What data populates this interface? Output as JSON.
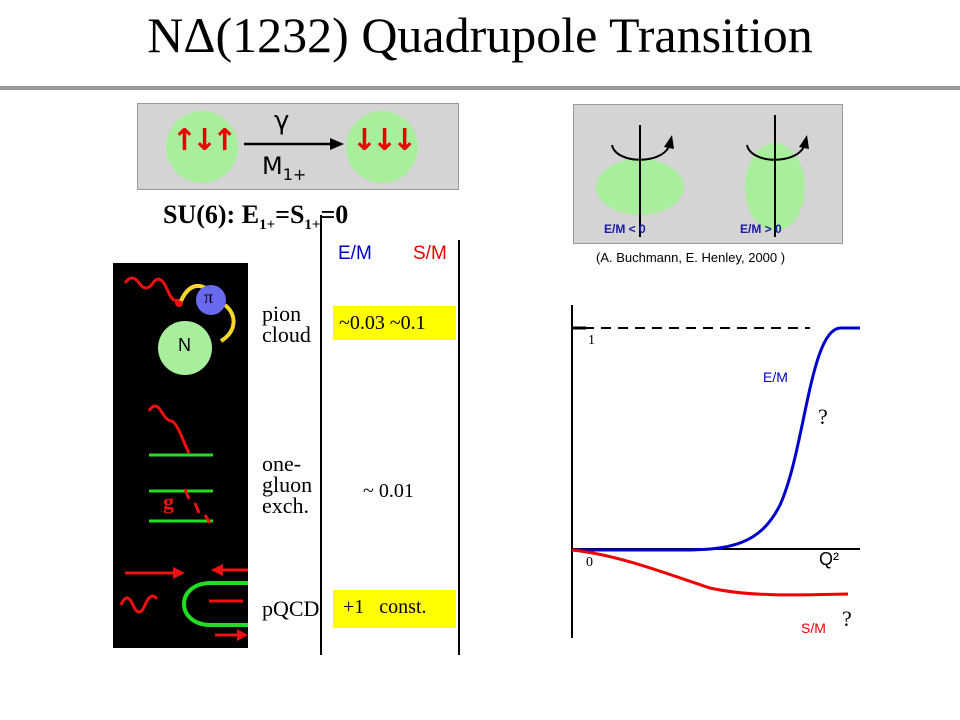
{
  "title": "NΔ(1232) Quadrupole Transition",
  "top_diagram": {
    "left_spins": "↑↓↑",
    "right_spins": "↓↓↓",
    "photon_label": "γ",
    "multipole_main": "M",
    "multipole_sub": "1+"
  },
  "su6": {
    "prefix": "SU(6): E",
    "sub1": "1+",
    "middle": "=S",
    "sub2": "1+",
    "suffix": "=0"
  },
  "table": {
    "col_em": "E/M",
    "col_sm": "S/M",
    "rows": [
      {
        "label_lines": [
          "pion",
          "cloud"
        ],
        "value": "~0.03  ~0.1",
        "highlight": true
      },
      {
        "label_lines": [
          "one-",
          "gluon",
          "exch."
        ],
        "value": "~ 0.01",
        "highlight": false
      },
      {
        "label_lines": [
          "pQCD"
        ],
        "value": "+1   const.",
        "highlight": true
      }
    ],
    "diagram_labels": {
      "pion": "π",
      "nucleon": "N",
      "gluon": "g"
    }
  },
  "deformation": {
    "left_label": "E/M < 0",
    "right_label": "E/M > 0",
    "citation": "(A. Buchmann, E. Henley, 2000 )"
  },
  "chart_data": {
    "type": "line",
    "xlabel": "Q²",
    "ylabel": "",
    "tick_labels": {
      "y_one": "1",
      "origin": "0"
    },
    "series": [
      {
        "name": "E/M",
        "color": "#0000cc",
        "trend": "rises from 0 to 1 at large Q²"
      },
      {
        "name": "S/M",
        "color": "#ee0000",
        "trend": "falls slightly below 0 and saturates"
      }
    ],
    "asymptote_y": 1,
    "annotations": [
      "?",
      "?"
    ]
  }
}
